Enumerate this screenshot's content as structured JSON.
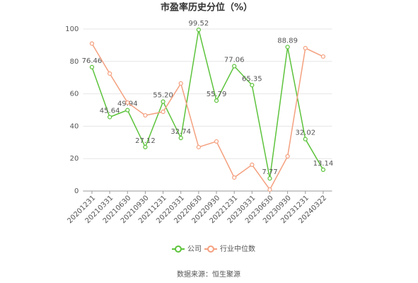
{
  "chart_data": {
    "type": "line",
    "title": "市盈率历史分位（%）",
    "categories": [
      "20201231",
      "20210331",
      "20210630",
      "20210930",
      "20211231",
      "20220331",
      "20220630",
      "20220930",
      "20221231",
      "20230331",
      "20230630",
      "20230930",
      "20231231",
      "20240322"
    ],
    "series": [
      {
        "name": "公司",
        "color": "#5cc33b",
        "values": [
          76.46,
          45.64,
          49.94,
          27.12,
          55.2,
          32.74,
          99.52,
          55.79,
          77.06,
          65.35,
          7.77,
          88.89,
          32.02,
          13.14
        ],
        "value_labels": [
          "76.46",
          "45.64",
          "49.94",
          "27.12",
          "55.20",
          "32.74",
          "99.52",
          "55.79",
          "77.06",
          "65.35",
          "7.77",
          "88.89",
          "32.02",
          "13.14"
        ]
      },
      {
        "name": "行业中位数",
        "color": "#f4a07f",
        "values": [
          91,
          72.5,
          54.6,
          46.7,
          48.9,
          66.4,
          27.1,
          30.6,
          8.3,
          16.2,
          0.9,
          21.4,
          88.2,
          83
        ]
      }
    ],
    "ylim": [
      0,
      100
    ],
    "yticks": [
      0,
      20,
      40,
      60,
      80,
      100
    ],
    "grid": true,
    "legend": "bottom",
    "source": "数据来源：恒生聚源"
  }
}
